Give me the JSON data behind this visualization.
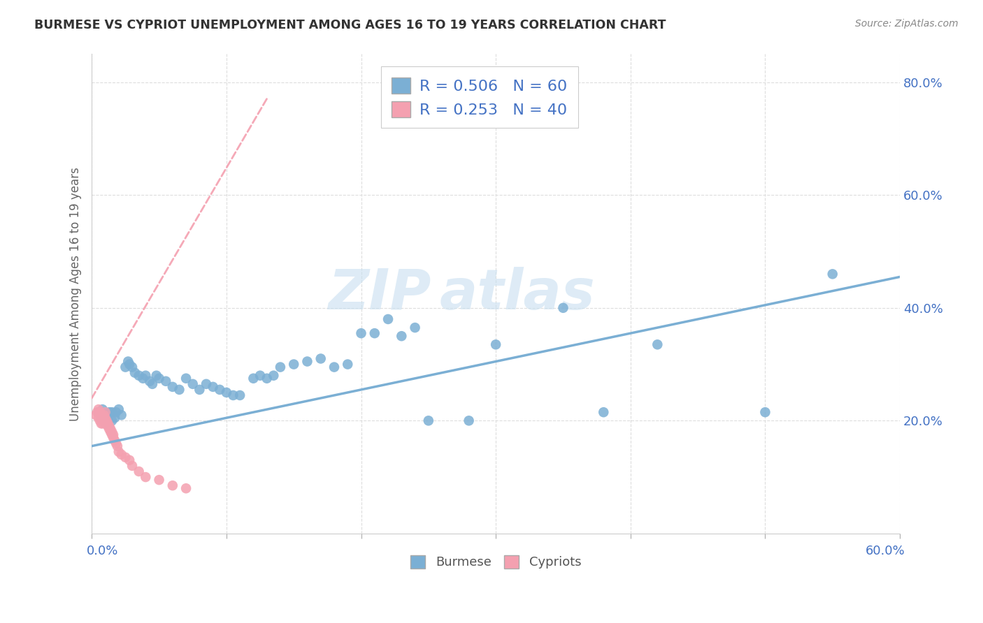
{
  "title": "BURMESE VS CYPRIOT UNEMPLOYMENT AMONG AGES 16 TO 19 YEARS CORRELATION CHART",
  "source": "Source: ZipAtlas.com",
  "ylabel": "Unemployment Among Ages 16 to 19 years",
  "burmese_color": "#7bafd4",
  "cypriot_color": "#f4a0b0",
  "burmese_R": 0.506,
  "burmese_N": 60,
  "cypriot_R": 0.253,
  "cypriot_N": 40,
  "legend_text_color": "#4472c4",
  "xlim": [
    0.0,
    0.6
  ],
  "ylim": [
    0.0,
    0.85
  ],
  "burmese_x": [
    0.005,
    0.007,
    0.008,
    0.01,
    0.01,
    0.012,
    0.013,
    0.015,
    0.015,
    0.017,
    0.018,
    0.02,
    0.022,
    0.025,
    0.027,
    0.028,
    0.03,
    0.032,
    0.035,
    0.038,
    0.04,
    0.043,
    0.045,
    0.048,
    0.05,
    0.055,
    0.06,
    0.065,
    0.07,
    0.075,
    0.08,
    0.085,
    0.09,
    0.095,
    0.1,
    0.105,
    0.11,
    0.12,
    0.125,
    0.13,
    0.135,
    0.14,
    0.15,
    0.16,
    0.17,
    0.18,
    0.19,
    0.2,
    0.21,
    0.22,
    0.23,
    0.24,
    0.25,
    0.28,
    0.3,
    0.35,
    0.38,
    0.42,
    0.5,
    0.55
  ],
  "burmese_y": [
    0.215,
    0.205,
    0.22,
    0.195,
    0.21,
    0.2,
    0.215,
    0.2,
    0.215,
    0.205,
    0.215,
    0.22,
    0.21,
    0.295,
    0.305,
    0.3,
    0.295,
    0.285,
    0.28,
    0.275,
    0.28,
    0.27,
    0.265,
    0.28,
    0.275,
    0.27,
    0.26,
    0.255,
    0.275,
    0.265,
    0.255,
    0.265,
    0.26,
    0.255,
    0.25,
    0.245,
    0.245,
    0.275,
    0.28,
    0.275,
    0.28,
    0.295,
    0.3,
    0.305,
    0.31,
    0.295,
    0.3,
    0.355,
    0.355,
    0.38,
    0.35,
    0.365,
    0.2,
    0.2,
    0.335,
    0.4,
    0.215,
    0.335,
    0.215,
    0.46
  ],
  "cypriot_x": [
    0.003,
    0.004,
    0.005,
    0.005,
    0.006,
    0.006,
    0.007,
    0.007,
    0.008,
    0.008,
    0.009,
    0.009,
    0.01,
    0.01,
    0.01,
    0.011,
    0.011,
    0.012,
    0.012,
    0.013,
    0.013,
    0.014,
    0.014,
    0.015,
    0.015,
    0.016,
    0.016,
    0.017,
    0.018,
    0.019,
    0.02,
    0.022,
    0.025,
    0.028,
    0.03,
    0.035,
    0.04,
    0.05,
    0.06,
    0.07
  ],
  "cypriot_y": [
    0.21,
    0.215,
    0.205,
    0.22,
    0.2,
    0.215,
    0.195,
    0.21,
    0.195,
    0.205,
    0.2,
    0.21,
    0.215,
    0.2,
    0.205,
    0.195,
    0.2,
    0.19,
    0.195,
    0.185,
    0.19,
    0.18,
    0.185,
    0.175,
    0.18,
    0.175,
    0.17,
    0.165,
    0.16,
    0.155,
    0.145,
    0.14,
    0.135,
    0.13,
    0.12,
    0.11,
    0.1,
    0.095,
    0.085,
    0.08
  ],
  "watermark_top": "ZIP",
  "watermark_bot": "atlas",
  "background_color": "#ffffff",
  "grid_color": "#dddddd"
}
